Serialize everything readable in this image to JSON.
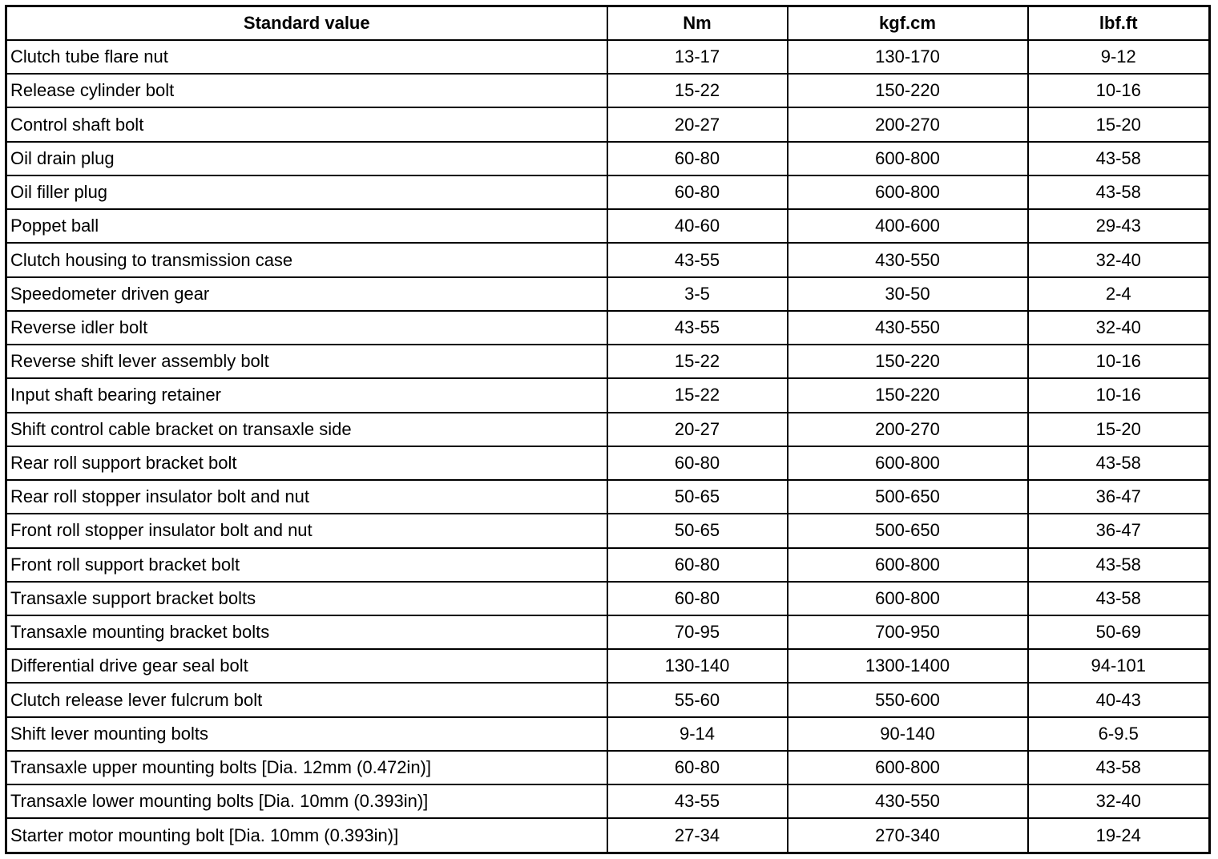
{
  "table": {
    "header": [
      "Standard value",
      "Nm",
      "kgf.cm",
      "lbf.ft"
    ],
    "rows": [
      [
        "Clutch tube flare nut",
        "13-17",
        "130-170",
        "9-12"
      ],
      [
        "Release cylinder bolt",
        "15-22",
        "150-220",
        "10-16"
      ],
      [
        "Control shaft bolt",
        "20-27",
        "200-270",
        "15-20"
      ],
      [
        "Oil drain plug",
        "60-80",
        "600-800",
        "43-58"
      ],
      [
        "Oil filler plug",
        "60-80",
        "600-800",
        "43-58"
      ],
      [
        "Poppet ball",
        "40-60",
        "400-600",
        "29-43"
      ],
      [
        "Clutch housing to transmission case",
        "43-55",
        "430-550",
        "32-40"
      ],
      [
        "Speedometer driven gear",
        "3-5",
        "30-50",
        "2-4"
      ],
      [
        "Reverse idler bolt",
        "43-55",
        "430-550",
        "32-40"
      ],
      [
        "Reverse shift lever assembly bolt",
        "15-22",
        "150-220",
        "10-16"
      ],
      [
        "Input shaft bearing retainer",
        "15-22",
        "150-220",
        "10-16"
      ],
      [
        "Shift control cable bracket on transaxle side",
        "20-27",
        "200-270",
        "15-20"
      ],
      [
        "Rear roll support bracket bolt",
        "60-80",
        "600-800",
        "43-58"
      ],
      [
        "Rear roll stopper insulator bolt and nut",
        "50-65",
        "500-650",
        "36-47"
      ],
      [
        "Front roll stopper insulator bolt and nut",
        "50-65",
        "500-650",
        "36-47"
      ],
      [
        "Front roll support bracket bolt",
        "60-80",
        "600-800",
        "43-58"
      ],
      [
        "Transaxle support bracket bolts",
        "60-80",
        "600-800",
        "43-58"
      ],
      [
        "Transaxle mounting bracket bolts",
        "70-95",
        "700-950",
        "50-69"
      ],
      [
        "Differential drive gear seal bolt",
        "130-140",
        "1300-1400",
        "94-101"
      ],
      [
        "Clutch release lever fulcrum bolt",
        "55-60",
        "550-600",
        "40-43"
      ],
      [
        "Shift lever mounting bolts",
        "9-14",
        "90-140",
        "6-9.5"
      ],
      [
        "Transaxle upper mounting bolts [Dia. 12mm (0.472in)]",
        "60-80",
        "600-800",
        "43-58"
      ],
      [
        "Transaxle lower mounting bolts [Dia. 10mm (0.393in)]",
        "43-55",
        "430-550",
        "32-40"
      ],
      [
        "Starter motor mounting bolt [Dia. 10mm (0.393in)]",
        "27-34",
        "270-340",
        "19-24"
      ]
    ]
  }
}
